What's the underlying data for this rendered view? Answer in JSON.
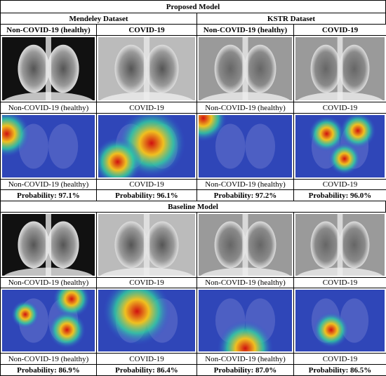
{
  "title": "Proposed Model",
  "datasets": [
    "Mendeley Dataset",
    "KSTR Dataset"
  ],
  "columns": [
    "Non-COVID-19 (healthy)",
    "COVID-19",
    "Non-COVID-19 (healthy)",
    "COVID-19"
  ],
  "proposed": {
    "image_labels": [
      "Non-COVID-19 (healthy)",
      "COVID-19",
      "Non-COVID-19 (healthy)",
      "COVID-19"
    ],
    "heatmap_labels": [
      "Non-COVID-19 (healthy)",
      "COVID-19",
      "Non-COVID-19 (healthy)",
      "COVID-19"
    ],
    "probabilities": [
      "Probability: 97.1%",
      "Probability: 96.1%",
      "Probability: 97.2%",
      "Probability: 96.0%"
    ]
  },
  "baseline": {
    "title": "Baseline Model",
    "image_labels": [
      "Non-COVID-19 (healthy)",
      "COVID-19",
      "Non-COVID-19 (healthy)",
      "COVID-19"
    ],
    "heatmap_labels": [
      "Non-COVID-19 (healthy)",
      "COVID-19",
      "Non-COVID-19 (healthy)",
      "COVID-19"
    ],
    "probabilities": [
      "Probability: 86.9%",
      "Probability: 86.4%",
      "Probability: 87.0%",
      "Probability: 86.5%"
    ]
  }
}
